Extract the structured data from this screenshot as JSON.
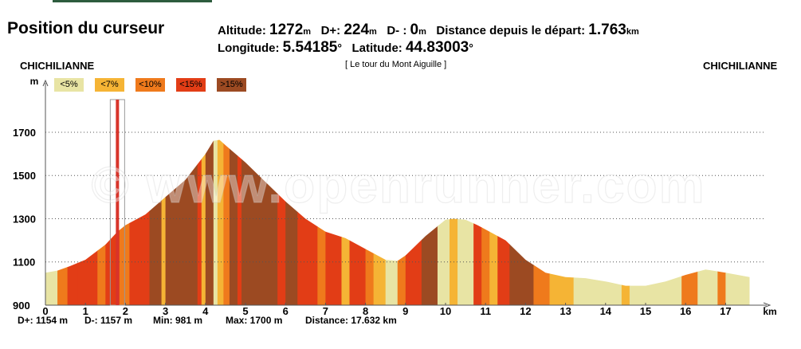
{
  "header": {
    "title": "Position du curseur",
    "altitude_label": "Altitude:",
    "altitude_value": "1272",
    "altitude_unit": "m",
    "dplus_label": "D+:",
    "dplus_value": "224",
    "dplus_unit": "m",
    "dminus_label": "D- :",
    "dminus_value": "0",
    "dminus_unit": "m",
    "distance_label": "Distance depuis le départ:",
    "distance_value": "1.763",
    "distance_unit": "km",
    "longitude_label": "Longitude:",
    "longitude_value": "5.54185",
    "longitude_unit": "°",
    "latitude_label": "Latitude:",
    "latitude_value": "44.83003",
    "latitude_unit": "°"
  },
  "start_place": "CHICHILIANNE",
  "end_place": "CHICHILIANNE",
  "route_name": "[ Le tour du Mont Aiguille ]",
  "watermark": "© www.openrunner.com",
  "legend": [
    {
      "label": "<5%",
      "color": "#e8e4a4"
    },
    {
      "label": "<7%",
      "color": "#f5b435"
    },
    {
      "label": "<10%",
      "color": "#ef7a1c"
    },
    {
      "label": "<15%",
      "color": "#e23d16"
    },
    {
      "label": ">15%",
      "color": "#9c4a22"
    }
  ],
  "stats": {
    "dplus": "D+: 1154 m",
    "dminus": "D-: 1157 m",
    "min": "Min: 981 m",
    "max": "Max: 1700 m",
    "distance": "Distance: 17.632 km"
  },
  "chart_data": {
    "type": "area",
    "xlabel": "km",
    "ylabel": "m",
    "xlim": [
      0,
      18
    ],
    "ylim": [
      900,
      1900
    ],
    "yticks": [
      900,
      1100,
      1300,
      1500,
      1700
    ],
    "xticks": [
      0,
      1,
      2,
      3,
      4,
      5,
      6,
      7,
      8,
      9,
      10,
      11,
      12,
      13,
      14,
      15,
      16,
      17
    ],
    "grid": true,
    "cursor_km": 1.8,
    "x": [
      0,
      0.3,
      0.6,
      1.0,
      1.5,
      1.8,
      2.0,
      2.5,
      3.0,
      3.5,
      4.0,
      4.2,
      4.35,
      4.5,
      5.0,
      5.5,
      6.0,
      6.5,
      7.0,
      7.5,
      8.0,
      8.5,
      8.8,
      9.0,
      9.5,
      10.0,
      10.2,
      10.5,
      10.8,
      11.0,
      11.5,
      12.0,
      12.5,
      13.0,
      13.5,
      14.0,
      14.5,
      15.0,
      15.5,
      16.0,
      16.5,
      17.0,
      17.6
    ],
    "y": [
      1050,
      1060,
      1080,
      1110,
      1180,
      1240,
      1270,
      1320,
      1400,
      1480,
      1600,
      1660,
      1665,
      1640,
      1560,
      1470,
      1380,
      1300,
      1240,
      1210,
      1160,
      1110,
      1105,
      1130,
      1220,
      1295,
      1300,
      1295,
      1270,
      1250,
      1200,
      1110,
      1050,
      1030,
      1025,
      1010,
      990,
      990,
      1010,
      1040,
      1065,
      1050,
      1030
    ],
    "slope_bands": [
      [
        0,
        0.3,
        "#e8e4a4"
      ],
      [
        0.3,
        0.55,
        "#ef7a1c"
      ],
      [
        0.55,
        0.8,
        "#e23d16"
      ],
      [
        0.8,
        1.3,
        "#e23d16"
      ],
      [
        1.3,
        1.5,
        "#ef7a1c"
      ],
      [
        1.5,
        1.85,
        "#e23d16"
      ],
      [
        1.85,
        2.1,
        "#ef7a1c"
      ],
      [
        2.1,
        2.6,
        "#e23d16"
      ],
      [
        2.6,
        2.9,
        "#9c4a22"
      ],
      [
        2.9,
        3.0,
        "#f5b435"
      ],
      [
        3.0,
        3.8,
        "#9c4a22"
      ],
      [
        3.8,
        3.9,
        "#e23d16"
      ],
      [
        3.9,
        4.0,
        "#f5b435"
      ],
      [
        4.0,
        4.2,
        "#9c4a22"
      ],
      [
        4.2,
        4.3,
        "#e8e4a4"
      ],
      [
        4.3,
        4.45,
        "#f5b435"
      ],
      [
        4.45,
        4.6,
        "#ef7a1c"
      ],
      [
        4.6,
        4.8,
        "#9c4a22"
      ],
      [
        4.8,
        4.9,
        "#e23d16"
      ],
      [
        4.9,
        5.8,
        "#9c4a22"
      ],
      [
        5.8,
        6.0,
        "#e23d16"
      ],
      [
        6.0,
        6.3,
        "#9c4a22"
      ],
      [
        6.3,
        6.8,
        "#e23d16"
      ],
      [
        6.8,
        7.0,
        "#ef7a1c"
      ],
      [
        7.0,
        7.4,
        "#e23d16"
      ],
      [
        7.4,
        7.6,
        "#f5b435"
      ],
      [
        7.6,
        8.0,
        "#e23d16"
      ],
      [
        8.0,
        8.2,
        "#ef7a1c"
      ],
      [
        8.2,
        8.5,
        "#f5b435"
      ],
      [
        8.5,
        8.8,
        "#e8e4a4"
      ],
      [
        8.8,
        9.0,
        "#ef7a1c"
      ],
      [
        9.0,
        9.4,
        "#e23d16"
      ],
      [
        9.4,
        9.8,
        "#9c4a22"
      ],
      [
        9.8,
        10.1,
        "#e8e4a4"
      ],
      [
        10.1,
        10.3,
        "#f5b435"
      ],
      [
        10.3,
        10.7,
        "#e8e4a4"
      ],
      [
        10.7,
        10.9,
        "#e23d16"
      ],
      [
        10.9,
        11.1,
        "#ef7a1c"
      ],
      [
        11.1,
        11.3,
        "#f5b435"
      ],
      [
        11.3,
        11.6,
        "#e23d16"
      ],
      [
        11.6,
        12.2,
        "#9c4a22"
      ],
      [
        12.2,
        12.6,
        "#ef7a1c"
      ],
      [
        12.6,
        13.2,
        "#f5b435"
      ],
      [
        13.2,
        14.4,
        "#e8e4a4"
      ],
      [
        14.4,
        14.6,
        "#f5b435"
      ],
      [
        14.6,
        15.9,
        "#e8e4a4"
      ],
      [
        15.9,
        16.3,
        "#ef7a1c"
      ],
      [
        16.3,
        16.8,
        "#e8e4a4"
      ],
      [
        16.8,
        17.0,
        "#ef7a1c"
      ],
      [
        17.0,
        17.6,
        "#e8e4a4"
      ]
    ]
  }
}
